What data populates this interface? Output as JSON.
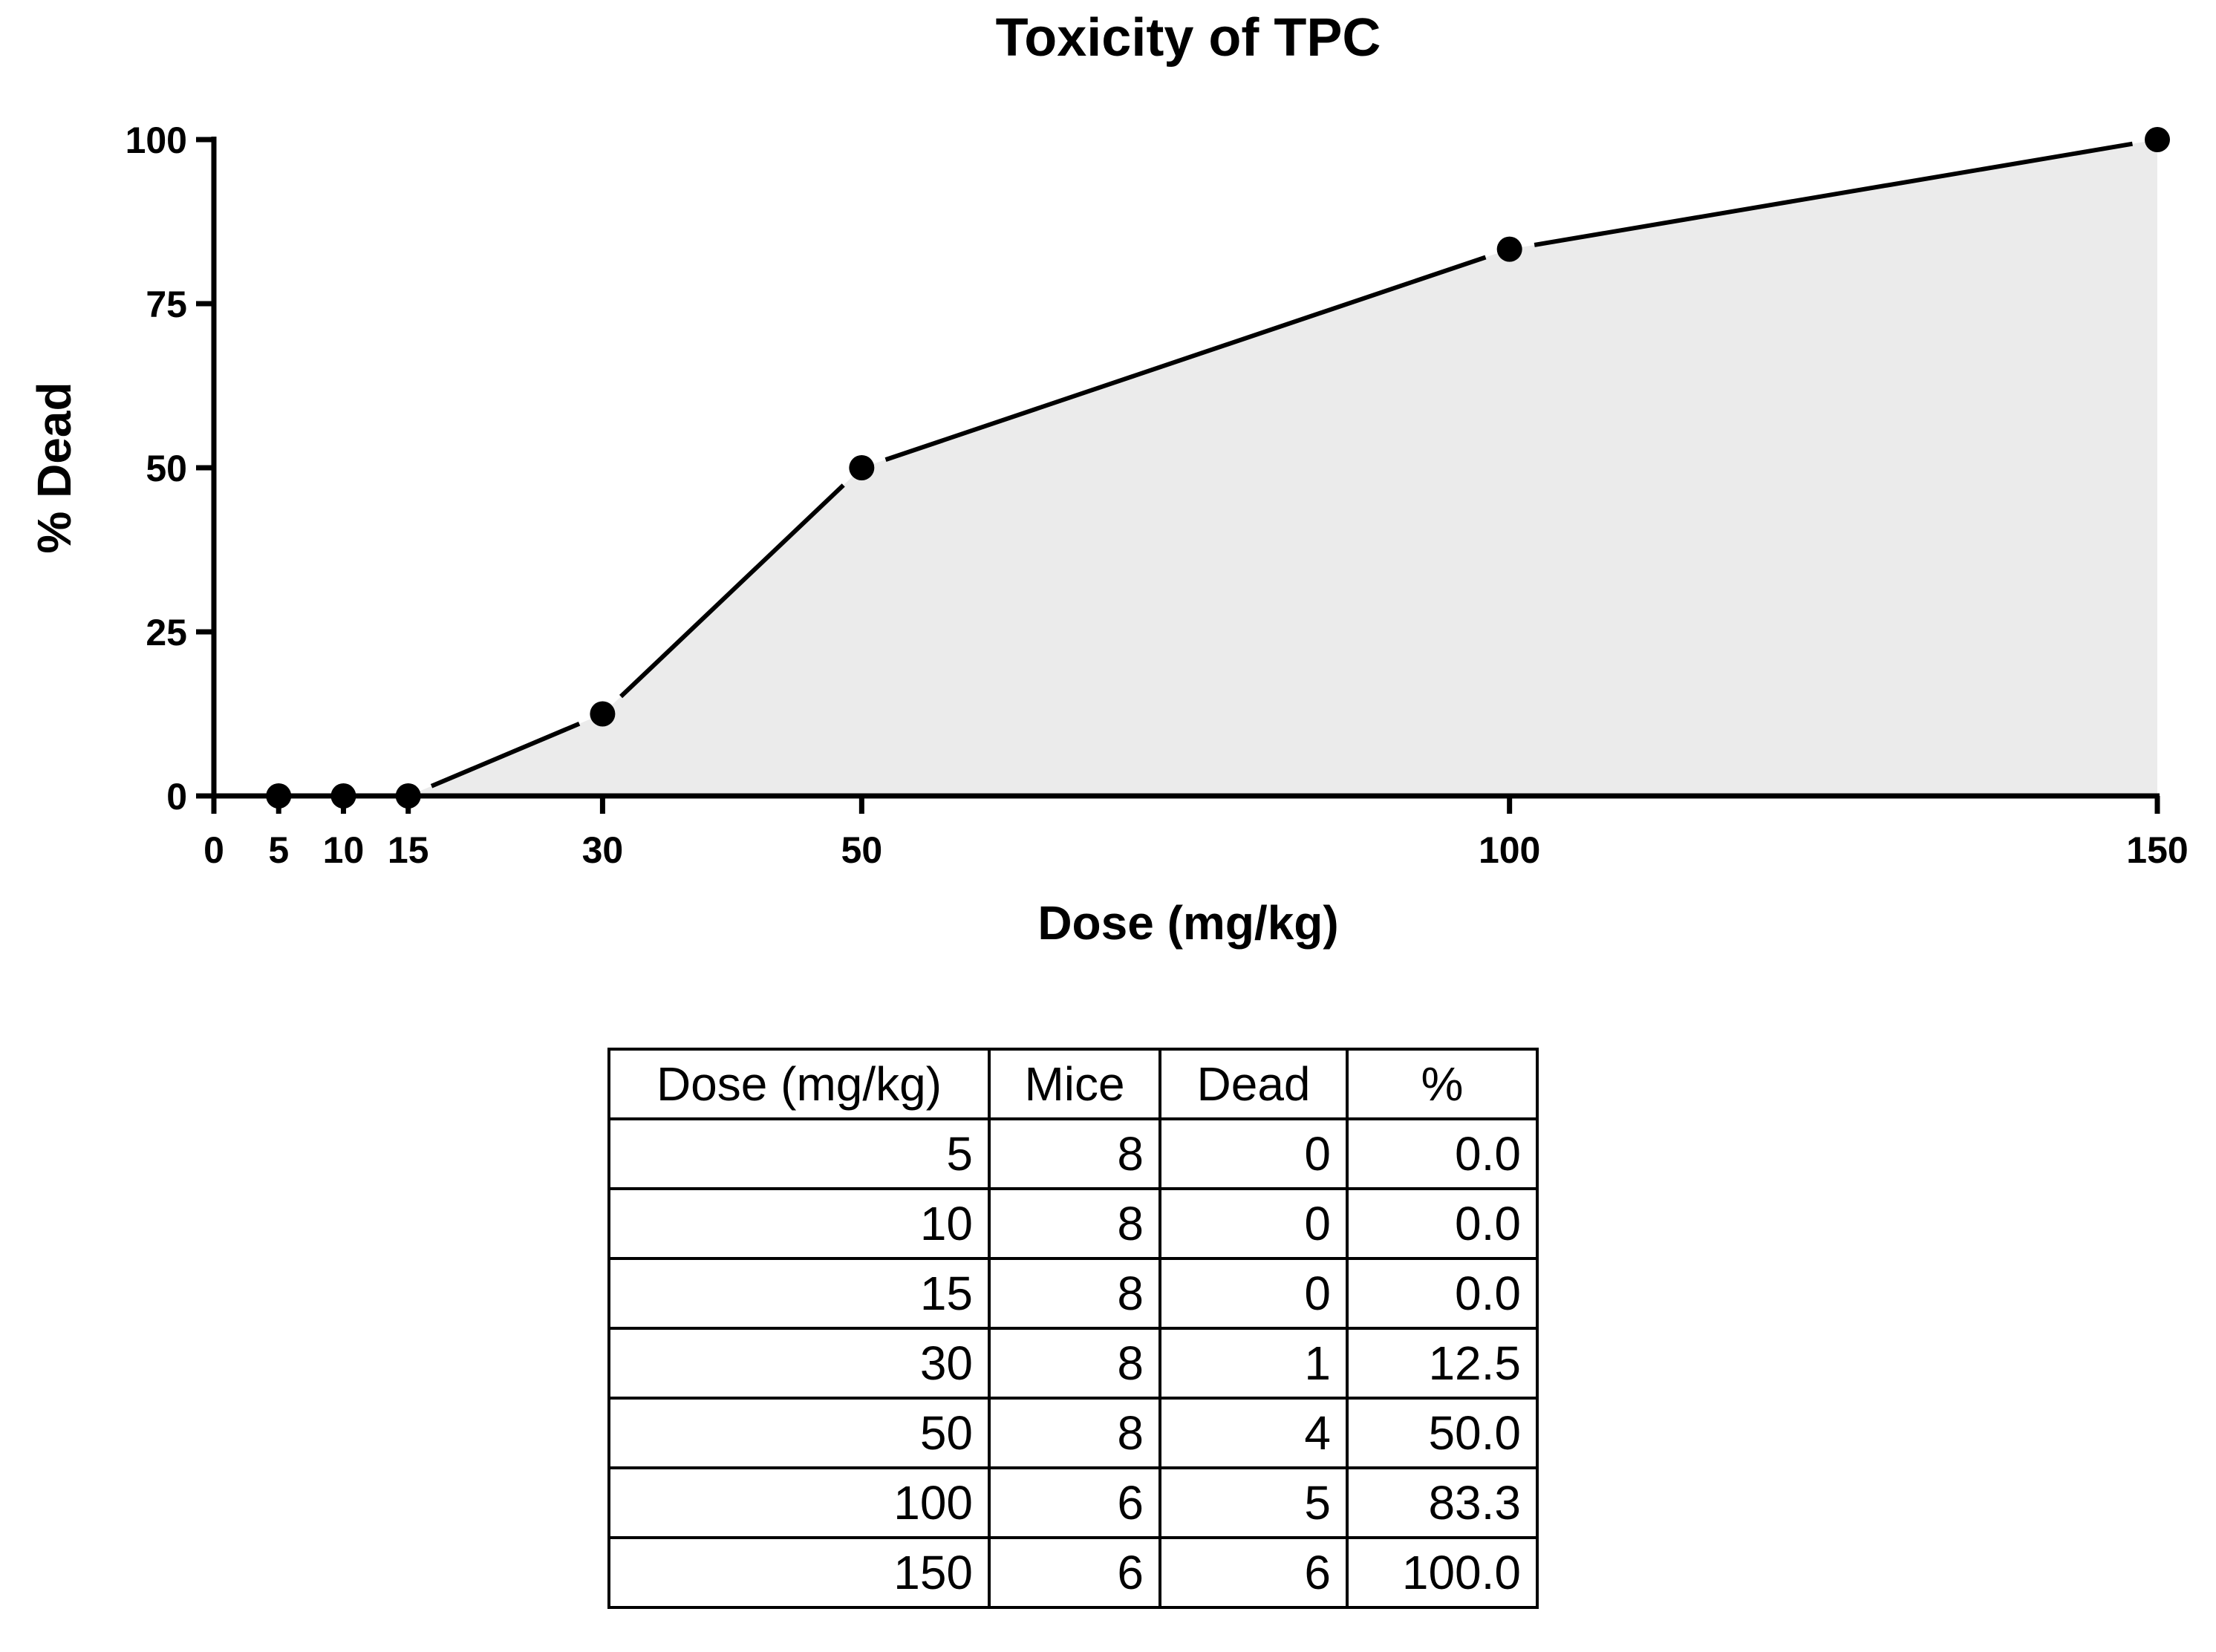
{
  "chart_data": {
    "type": "line",
    "title": "Toxicity of TPC",
    "xlabel": "Dose (mg/kg)",
    "ylabel": "% Dead",
    "xlim": [
      0,
      150
    ],
    "ylim": [
      0,
      100
    ],
    "x_ticks": [
      0,
      5,
      10,
      15,
      30,
      50,
      100,
      150
    ],
    "y_ticks": [
      0,
      25,
      50,
      75,
      100
    ],
    "x": [
      5,
      10,
      15,
      30,
      50,
      100,
      150
    ],
    "series": [
      {
        "name": "% Dead",
        "values": [
          0.0,
          0.0,
          0.0,
          12.5,
          50.0,
          83.3,
          100.0
        ]
      }
    ],
    "fill_under": true,
    "fill_color": "#ebebeb",
    "line_color": "#000000",
    "grid": false
  },
  "table": {
    "headers": [
      "Dose (mg/kg)",
      "Mice",
      "Dead",
      "%"
    ],
    "rows": [
      [
        "5",
        "8",
        "0",
        "0.0"
      ],
      [
        "10",
        "8",
        "0",
        "0.0"
      ],
      [
        "15",
        "8",
        "0",
        "0.0"
      ],
      [
        "30",
        "8",
        "1",
        "12.5"
      ],
      [
        "50",
        "8",
        "4",
        "50.0"
      ],
      [
        "100",
        "6",
        "5",
        "83.3"
      ],
      [
        "150",
        "6",
        "6",
        "100.0"
      ]
    ]
  }
}
